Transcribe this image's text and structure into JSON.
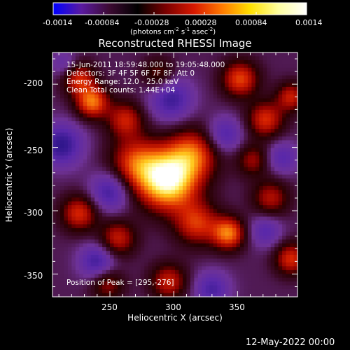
{
  "colorbar": {
    "ticks": [
      "-0.0014",
      "-0.00084",
      "-0.00028",
      "0.00028",
      "0.00084",
      "0.0014"
    ],
    "unit_prefix": "(photons cm",
    "unit_exp1": "-2",
    "unit_mid": " s",
    "unit_exp2": "-1",
    "unit_mid2": " asec",
    "unit_exp3": "-2",
    "unit_suffix": ")",
    "stops": [
      "#0000ff",
      "#5a1aa0",
      "#3c0a32",
      "#000000",
      "#7a0000",
      "#d81800",
      "#ff7a00",
      "#ffe000",
      "#ffffa0",
      "#ffffff"
    ]
  },
  "chart_data": {
    "type": "heatmap",
    "title": "Reconstructed RHESSI Image",
    "xlabel": "Heliocentric X (arcsec)",
    "ylabel": "Heliocentric Y (arcsec)",
    "x_ticks": [
      "250",
      "300",
      "350"
    ],
    "y_ticks": [
      "-200",
      "-250",
      "-300",
      "-350"
    ],
    "xlim": [
      205,
      397
    ],
    "ylim": [
      -368,
      -175
    ],
    "info_lines": [
      "15-Jun-2011 18:59:48.000 to 19:05:48.000",
      "Detectors: 3F 4F 5F 6F 7F 8F, Att 0",
      "Energy Range: 12.0 - 25.0 keV",
      "Clean    Total counts: 1.44E+04"
    ],
    "peak_label": "Position of Peak = [295,-276]",
    "peak": [
      295,
      -276
    ],
    "blobs": [
      {
        "x": 295,
        "y": -276,
        "amp": 1.0,
        "r": 16
      },
      {
        "x": 315,
        "y": -255,
        "amp": 0.55,
        "r": 14
      },
      {
        "x": 270,
        "y": -262,
        "amp": 0.5,
        "r": 14
      },
      {
        "x": 236,
        "y": -214,
        "amp": 0.65,
        "r": 9
      },
      {
        "x": 225,
        "y": -195,
        "amp": 0.5,
        "r": 9
      },
      {
        "x": 262,
        "y": -228,
        "amp": 0.45,
        "r": 10
      },
      {
        "x": 352,
        "y": -196,
        "amp": 0.55,
        "r": 10
      },
      {
        "x": 372,
        "y": -228,
        "amp": 0.5,
        "r": 10
      },
      {
        "x": 392,
        "y": -210,
        "amp": 0.45,
        "r": 8
      },
      {
        "x": 226,
        "y": -302,
        "amp": 0.5,
        "r": 10
      },
      {
        "x": 256,
        "y": -322,
        "amp": 0.45,
        "r": 10
      },
      {
        "x": 318,
        "y": -310,
        "amp": 0.5,
        "r": 12
      },
      {
        "x": 343,
        "y": -318,
        "amp": 0.65,
        "r": 9
      },
      {
        "x": 376,
        "y": -290,
        "amp": 0.4,
        "r": 10
      },
      {
        "x": 392,
        "y": -338,
        "amp": 0.5,
        "r": 9
      },
      {
        "x": 296,
        "y": -356,
        "amp": 0.45,
        "r": 10
      },
      {
        "x": 248,
        "y": -358,
        "amp": 0.35,
        "r": 9
      },
      {
        "x": 362,
        "y": -260,
        "amp": 0.35,
        "r": 9
      },
      {
        "x": 288,
        "y": -192,
        "amp": 0.3,
        "r": 9
      }
    ],
    "troughs": [
      {
        "x": 212,
        "y": -248,
        "amp": 0.9,
        "r": 12
      },
      {
        "x": 298,
        "y": -212,
        "amp": 0.8,
        "r": 12
      },
      {
        "x": 250,
        "y": -285,
        "amp": 0.8,
        "r": 11
      },
      {
        "x": 340,
        "y": -240,
        "amp": 0.7,
        "r": 10
      },
      {
        "x": 240,
        "y": -340,
        "amp": 0.8,
        "r": 10
      },
      {
        "x": 330,
        "y": -362,
        "amp": 0.7,
        "r": 10
      },
      {
        "x": 385,
        "y": -258,
        "amp": 0.6,
        "r": 9
      },
      {
        "x": 372,
        "y": -316,
        "amp": 0.6,
        "r": 9
      },
      {
        "x": 215,
        "y": -185,
        "amp": 0.5,
        "r": 8
      }
    ]
  },
  "footer_date": "12-May-2022 00:00"
}
